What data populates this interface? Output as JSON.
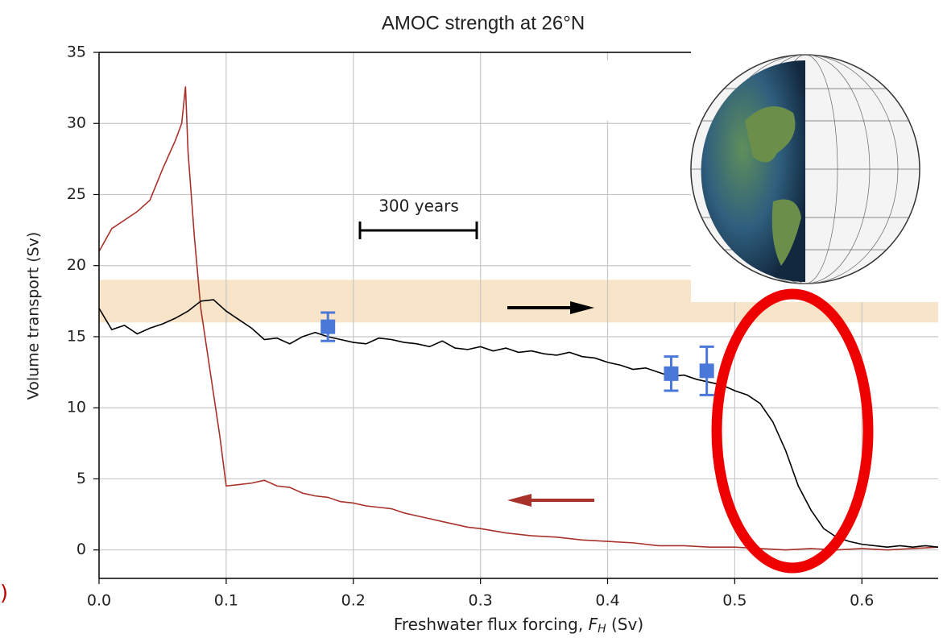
{
  "chart_data": {
    "type": "line",
    "title": "AMOC strength at 26°N",
    "y_label": "Volume transport (Sv)",
    "x_label": "Freshwater flux forcing, ",
    "x_label_var": "F",
    "x_label_sub": "H",
    "x_label_unit": " (Sv)",
    "annotation": "300 years",
    "annotation_left": ")",
    "xlim": [
      0,
      0.66
    ],
    "ylim": [
      -2,
      35
    ],
    "xticks": [
      {
        "value": 0,
        "label": "0.0"
      },
      0.1,
      0.2,
      0.3,
      0.4,
      0.5,
      0.6
    ],
    "yticks": [
      0,
      5,
      10,
      15,
      20,
      25,
      30,
      35
    ],
    "grid": true,
    "band": [
      16,
      19
    ],
    "band_color": "#f8e4c8",
    "series": [
      {
        "color": "#000000",
        "x": [
          0,
          0.01,
          0.02,
          0.03,
          0.04,
          0.05,
          0.06,
          0.07,
          0.08,
          0.09,
          0.1,
          0.11,
          0.12,
          0.13,
          0.14,
          0.15,
          0.16,
          0.17,
          0.18,
          0.19,
          0.2,
          0.21,
          0.22,
          0.23,
          0.24,
          0.25,
          0.26,
          0.27,
          0.28,
          0.29,
          0.3,
          0.31,
          0.32,
          0.33,
          0.34,
          0.35,
          0.36,
          0.37,
          0.38,
          0.39,
          0.4,
          0.41,
          0.42,
          0.43,
          0.44,
          0.45,
          0.46,
          0.47,
          0.48,
          0.49,
          0.5,
          0.51,
          0.52,
          0.53,
          0.54,
          0.55,
          0.56,
          0.57,
          0.58,
          0.59,
          0.6,
          0.61,
          0.62,
          0.63,
          0.64,
          0.65,
          0.66
        ],
        "values": [
          17,
          15.5,
          15.8,
          15.2,
          15.6,
          15.9,
          16.3,
          16.8,
          17.5,
          17.6,
          16.8,
          16.2,
          15.6,
          14.8,
          14.9,
          14.5,
          15,
          15.3,
          15,
          14.8,
          14.6,
          14.5,
          14.9,
          14.8,
          14.6,
          14.5,
          14.3,
          14.7,
          14.2,
          14.1,
          14.3,
          14,
          14.2,
          13.9,
          14,
          13.8,
          13.7,
          13.9,
          13.6,
          13.5,
          13.2,
          13,
          12.7,
          12.8,
          12.5,
          12.2,
          12.3,
          12,
          11.8,
          11.6,
          11.2,
          10.9,
          10.3,
          9,
          7,
          4.5,
          2.8,
          1.5,
          0.9,
          0.6,
          0.4,
          0.3,
          0.2,
          0.3,
          0.2,
          0.3,
          0.2
        ]
      },
      {
        "color": "#a8322a",
        "x": [
          0,
          0.01,
          0.02,
          0.03,
          0.04,
          0.05,
          0.06,
          0.065,
          0.068,
          0.07,
          0.075,
          0.08,
          0.085,
          0.09,
          0.095,
          0.1,
          0.11,
          0.12,
          0.13,
          0.14,
          0.15,
          0.16,
          0.17,
          0.18,
          0.19,
          0.2,
          0.21,
          0.22,
          0.23,
          0.24,
          0.25,
          0.26,
          0.27,
          0.28,
          0.29,
          0.3,
          0.32,
          0.34,
          0.36,
          0.38,
          0.4,
          0.42,
          0.44,
          0.46,
          0.48,
          0.5,
          0.52,
          0.54,
          0.56,
          0.58,
          0.6,
          0.62,
          0.64,
          0.66
        ],
        "values": [
          21,
          22.6,
          23.2,
          23.8,
          24.6,
          26.8,
          28.8,
          30,
          32.6,
          28,
          22,
          17,
          14,
          11,
          8,
          4.5,
          4.6,
          4.7,
          4.9,
          4.5,
          4.4,
          4,
          3.8,
          3.7,
          3.4,
          3.3,
          3.1,
          3,
          2.9,
          2.6,
          2.4,
          2.2,
          2,
          1.8,
          1.6,
          1.5,
          1.2,
          1,
          0.9,
          0.7,
          0.6,
          0.5,
          0.3,
          0.3,
          0.2,
          0.2,
          0.1,
          0,
          0.1,
          0,
          0.1,
          0,
          0.1,
          0.2
        ]
      }
    ],
    "points": {
      "color": "#4a78d8",
      "x": [
        0.18,
        0.45,
        0.478
      ],
      "values": [
        15.7,
        12.4,
        12.6
      ],
      "errors": [
        1,
        1.2,
        1.7
      ]
    }
  }
}
